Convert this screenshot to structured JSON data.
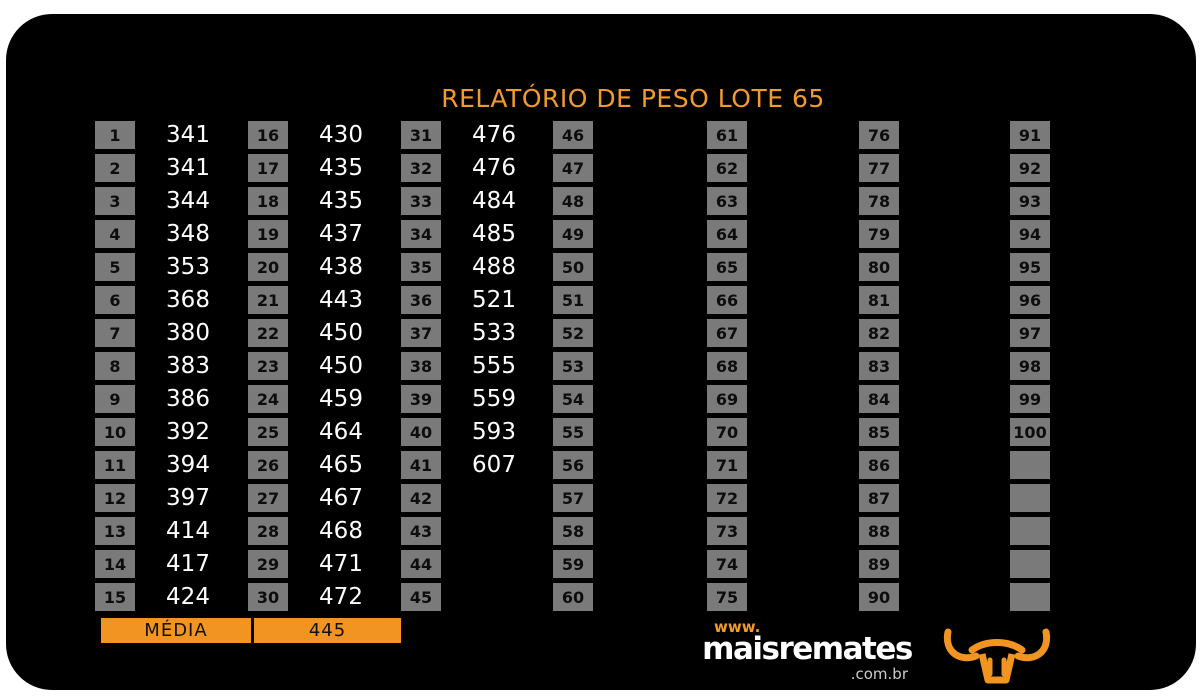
{
  "title": "RELATÓRIO DE PESO LOTE 65",
  "columns": [
    [
      {
        "num": "1",
        "weight": "341"
      },
      {
        "num": "2",
        "weight": "341"
      },
      {
        "num": "3",
        "weight": "344"
      },
      {
        "num": "4",
        "weight": "348"
      },
      {
        "num": "5",
        "weight": "353"
      },
      {
        "num": "6",
        "weight": "368"
      },
      {
        "num": "7",
        "weight": "380"
      },
      {
        "num": "8",
        "weight": "383"
      },
      {
        "num": "9",
        "weight": "386"
      },
      {
        "num": "10",
        "weight": "392"
      },
      {
        "num": "11",
        "weight": "394"
      },
      {
        "num": "12",
        "weight": "397"
      },
      {
        "num": "13",
        "weight": "414"
      },
      {
        "num": "14",
        "weight": "417"
      },
      {
        "num": "15",
        "weight": "424"
      }
    ],
    [
      {
        "num": "16",
        "weight": "430"
      },
      {
        "num": "17",
        "weight": "435"
      },
      {
        "num": "18",
        "weight": "435"
      },
      {
        "num": "19",
        "weight": "437"
      },
      {
        "num": "20",
        "weight": "438"
      },
      {
        "num": "21",
        "weight": "443"
      },
      {
        "num": "22",
        "weight": "450"
      },
      {
        "num": "23",
        "weight": "450"
      },
      {
        "num": "24",
        "weight": "459"
      },
      {
        "num": "25",
        "weight": "464"
      },
      {
        "num": "26",
        "weight": "465"
      },
      {
        "num": "27",
        "weight": "467"
      },
      {
        "num": "28",
        "weight": "468"
      },
      {
        "num": "29",
        "weight": "471"
      },
      {
        "num": "30",
        "weight": "472"
      }
    ],
    [
      {
        "num": "31",
        "weight": "476"
      },
      {
        "num": "32",
        "weight": "476"
      },
      {
        "num": "33",
        "weight": "484"
      },
      {
        "num": "34",
        "weight": "485"
      },
      {
        "num": "35",
        "weight": "488"
      },
      {
        "num": "36",
        "weight": "521"
      },
      {
        "num": "37",
        "weight": "533"
      },
      {
        "num": "38",
        "weight": "555"
      },
      {
        "num": "39",
        "weight": "559"
      },
      {
        "num": "40",
        "weight": "593"
      },
      {
        "num": "41",
        "weight": "607"
      },
      {
        "num": "42",
        "weight": ""
      },
      {
        "num": "43",
        "weight": ""
      },
      {
        "num": "44",
        "weight": ""
      },
      {
        "num": "45",
        "weight": ""
      }
    ],
    [
      {
        "num": "46",
        "weight": ""
      },
      {
        "num": "47",
        "weight": ""
      },
      {
        "num": "48",
        "weight": ""
      },
      {
        "num": "49",
        "weight": ""
      },
      {
        "num": "50",
        "weight": ""
      },
      {
        "num": "51",
        "weight": ""
      },
      {
        "num": "52",
        "weight": ""
      },
      {
        "num": "53",
        "weight": ""
      },
      {
        "num": "54",
        "weight": ""
      },
      {
        "num": "55",
        "weight": ""
      },
      {
        "num": "56",
        "weight": ""
      },
      {
        "num": "57",
        "weight": ""
      },
      {
        "num": "58",
        "weight": ""
      },
      {
        "num": "59",
        "weight": ""
      },
      {
        "num": "60",
        "weight": ""
      }
    ],
    [
      {
        "num": "61",
        "weight": ""
      },
      {
        "num": "62",
        "weight": ""
      },
      {
        "num": "63",
        "weight": ""
      },
      {
        "num": "64",
        "weight": ""
      },
      {
        "num": "65",
        "weight": ""
      },
      {
        "num": "66",
        "weight": ""
      },
      {
        "num": "67",
        "weight": ""
      },
      {
        "num": "68",
        "weight": ""
      },
      {
        "num": "69",
        "weight": ""
      },
      {
        "num": "70",
        "weight": ""
      },
      {
        "num": "71",
        "weight": ""
      },
      {
        "num": "72",
        "weight": ""
      },
      {
        "num": "73",
        "weight": ""
      },
      {
        "num": "74",
        "weight": ""
      },
      {
        "num": "75",
        "weight": ""
      }
    ],
    [
      {
        "num": "76",
        "weight": ""
      },
      {
        "num": "77",
        "weight": ""
      },
      {
        "num": "78",
        "weight": ""
      },
      {
        "num": "79",
        "weight": ""
      },
      {
        "num": "80",
        "weight": ""
      },
      {
        "num": "81",
        "weight": ""
      },
      {
        "num": "82",
        "weight": ""
      },
      {
        "num": "83",
        "weight": ""
      },
      {
        "num": "84",
        "weight": ""
      },
      {
        "num": "85",
        "weight": ""
      },
      {
        "num": "86",
        "weight": ""
      },
      {
        "num": "87",
        "weight": ""
      },
      {
        "num": "88",
        "weight": ""
      },
      {
        "num": "89",
        "weight": ""
      },
      {
        "num": "90",
        "weight": ""
      }
    ],
    [
      {
        "num": "91",
        "weight": ""
      },
      {
        "num": "92",
        "weight": ""
      },
      {
        "num": "93",
        "weight": ""
      },
      {
        "num": "94",
        "weight": ""
      },
      {
        "num": "95",
        "weight": ""
      },
      {
        "num": "96",
        "weight": ""
      },
      {
        "num": "97",
        "weight": ""
      },
      {
        "num": "98",
        "weight": ""
      },
      {
        "num": "99",
        "weight": ""
      },
      {
        "num": "100",
        "weight": ""
      },
      {
        "num": "",
        "weight": ""
      },
      {
        "num": "",
        "weight": ""
      },
      {
        "num": "",
        "weight": ""
      },
      {
        "num": "",
        "weight": ""
      },
      {
        "num": "",
        "weight": ""
      }
    ]
  ],
  "summary": {
    "label": "MÉDIA",
    "value": "445"
  },
  "logo": {
    "www": "www.",
    "name": "maisremates",
    "tld": ".com.br"
  },
  "colors": {
    "accent": "#f29421",
    "background": "#000000",
    "cell": "#7a7a7a",
    "text": "#ffffff"
  },
  "icons": {
    "logo_mark": "bull-head-icon"
  }
}
